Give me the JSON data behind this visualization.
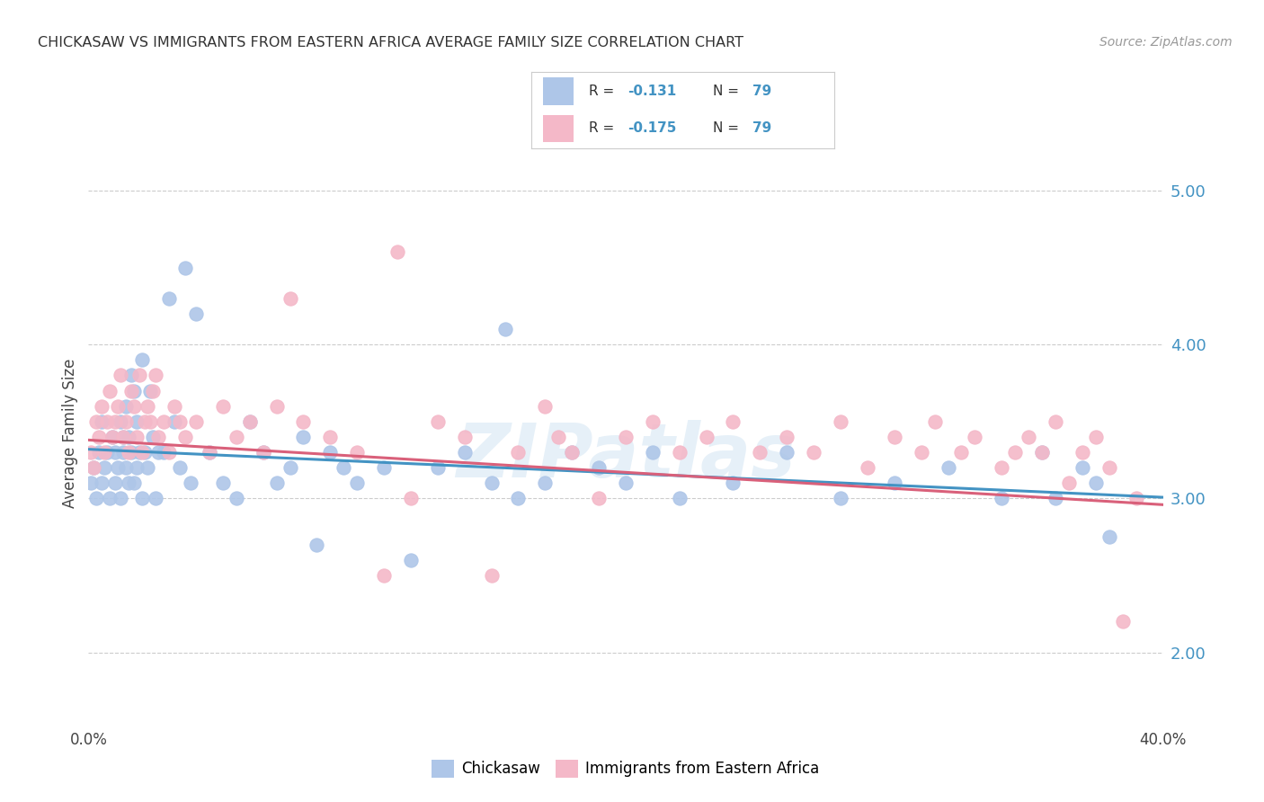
{
  "title": "CHICKASAW VS IMMIGRANTS FROM EASTERN AFRICA AVERAGE FAMILY SIZE CORRELATION CHART",
  "source": "Source: ZipAtlas.com",
  "ylabel": "Average Family Size",
  "yticks_right": [
    2.0,
    3.0,
    4.0,
    5.0
  ],
  "xlim": [
    0.0,
    0.4
  ],
  "ylim": [
    1.55,
    5.3
  ],
  "blue_color": "#aec6e8",
  "pink_color": "#f4b8c8",
  "blue_line_color": "#4393c3",
  "pink_line_color": "#d9607a",
  "watermark": "ZIPatlas",
  "blue_intercept": 3.32,
  "blue_slope": -0.78,
  "pink_intercept": 3.38,
  "pink_slope": -1.05,
  "chickasaw_x": [
    0.001,
    0.002,
    0.003,
    0.004,
    0.005,
    0.005,
    0.006,
    0.007,
    0.008,
    0.009,
    0.01,
    0.01,
    0.011,
    0.012,
    0.012,
    0.013,
    0.013,
    0.014,
    0.014,
    0.015,
    0.015,
    0.016,
    0.016,
    0.017,
    0.017,
    0.018,
    0.018,
    0.019,
    0.02,
    0.02,
    0.021,
    0.022,
    0.023,
    0.024,
    0.025,
    0.026,
    0.028,
    0.03,
    0.032,
    0.034,
    0.036,
    0.038,
    0.04,
    0.045,
    0.05,
    0.055,
    0.06,
    0.065,
    0.07,
    0.075,
    0.08,
    0.085,
    0.09,
    0.095,
    0.1,
    0.11,
    0.12,
    0.13,
    0.14,
    0.15,
    0.155,
    0.16,
    0.17,
    0.18,
    0.19,
    0.2,
    0.21,
    0.22,
    0.24,
    0.26,
    0.28,
    0.3,
    0.32,
    0.34,
    0.355,
    0.36,
    0.37,
    0.375,
    0.38
  ],
  "chickasaw_y": [
    3.1,
    3.2,
    3.0,
    3.3,
    3.1,
    3.5,
    3.2,
    3.3,
    3.0,
    3.4,
    3.3,
    3.1,
    3.2,
    3.5,
    3.0,
    3.3,
    3.4,
    3.6,
    3.2,
    3.1,
    3.4,
    3.8,
    3.3,
    3.7,
    3.1,
    3.2,
    3.5,
    3.3,
    3.0,
    3.9,
    3.3,
    3.2,
    3.7,
    3.4,
    3.0,
    3.3,
    3.3,
    4.3,
    3.5,
    3.2,
    4.5,
    3.1,
    4.2,
    3.3,
    3.1,
    3.0,
    3.5,
    3.3,
    3.1,
    3.2,
    3.4,
    2.7,
    3.3,
    3.2,
    3.1,
    3.2,
    2.6,
    3.2,
    3.3,
    3.1,
    4.1,
    3.0,
    3.1,
    3.3,
    3.2,
    3.1,
    3.3,
    3.0,
    3.1,
    3.3,
    3.0,
    3.1,
    3.2,
    3.0,
    3.3,
    3.0,
    3.2,
    3.1,
    2.75
  ],
  "eastern_africa_x": [
    0.001,
    0.002,
    0.003,
    0.004,
    0.005,
    0.006,
    0.007,
    0.008,
    0.009,
    0.01,
    0.011,
    0.012,
    0.013,
    0.014,
    0.015,
    0.016,
    0.017,
    0.018,
    0.019,
    0.02,
    0.021,
    0.022,
    0.023,
    0.024,
    0.025,
    0.026,
    0.028,
    0.03,
    0.032,
    0.034,
    0.036,
    0.04,
    0.045,
    0.05,
    0.055,
    0.06,
    0.065,
    0.07,
    0.075,
    0.08,
    0.09,
    0.1,
    0.11,
    0.115,
    0.12,
    0.13,
    0.14,
    0.15,
    0.16,
    0.17,
    0.175,
    0.18,
    0.19,
    0.2,
    0.21,
    0.22,
    0.23,
    0.24,
    0.25,
    0.26,
    0.27,
    0.28,
    0.29,
    0.3,
    0.31,
    0.315,
    0.325,
    0.33,
    0.34,
    0.345,
    0.35,
    0.355,
    0.36,
    0.365,
    0.37,
    0.375,
    0.38,
    0.385,
    0.39
  ],
  "eastern_africa_y": [
    3.3,
    3.2,
    3.5,
    3.4,
    3.6,
    3.3,
    3.5,
    3.7,
    3.4,
    3.5,
    3.6,
    3.8,
    3.4,
    3.5,
    3.3,
    3.7,
    3.6,
    3.4,
    3.8,
    3.3,
    3.5,
    3.6,
    3.5,
    3.7,
    3.8,
    3.4,
    3.5,
    3.3,
    3.6,
    3.5,
    3.4,
    3.5,
    3.3,
    3.6,
    3.4,
    3.5,
    3.3,
    3.6,
    4.3,
    3.5,
    3.4,
    3.3,
    2.5,
    4.6,
    3.0,
    3.5,
    3.4,
    2.5,
    3.3,
    3.6,
    3.4,
    3.3,
    3.0,
    3.4,
    3.5,
    3.3,
    3.4,
    3.5,
    3.3,
    3.4,
    3.3,
    3.5,
    3.2,
    3.4,
    3.3,
    3.5,
    3.3,
    3.4,
    3.2,
    3.3,
    3.4,
    3.3,
    3.5,
    3.1,
    3.3,
    3.4,
    3.2,
    2.2,
    3.0
  ]
}
